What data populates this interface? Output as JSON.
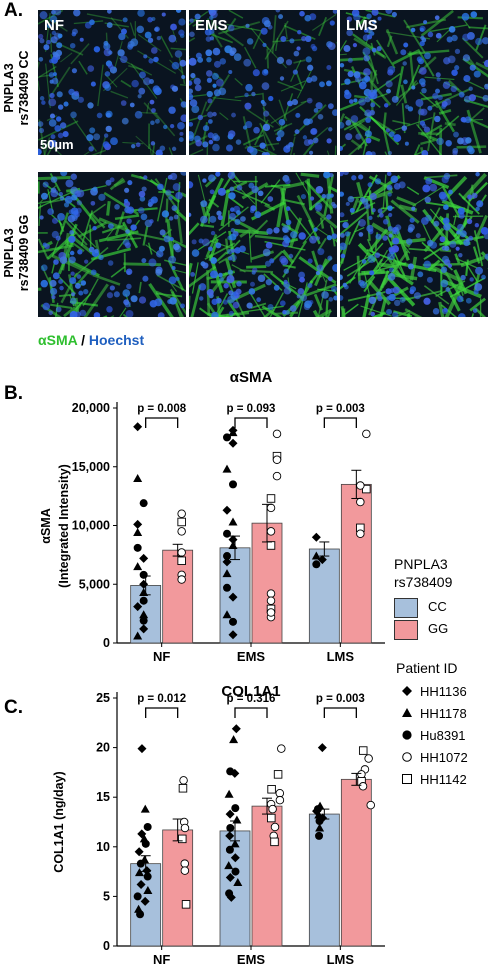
{
  "panelA": {
    "letter": "A.",
    "columns": [
      "NF",
      "EMS",
      "LMS"
    ],
    "rows": [
      "PNPLA3\nrs738409 CC",
      "PNPLA3\nrs738409 GG"
    ],
    "row1": "PNPLA3",
    "row_cc": "rs738409 CC",
    "row_gg": "rs738409 GG",
    "scalebar": "50µm",
    "stain_green": "αSMA",
    "stain_sep": " / ",
    "stain_blue": "Hoechst",
    "color_green": "#2fbf2f",
    "color_blue": "#1f5fbf"
  },
  "legend": {
    "genotype_title_1": "PNPLA3",
    "genotype_title_2": "rs738409",
    "genotypes": [
      {
        "name": "CC",
        "color": "#a7c0dc"
      },
      {
        "name": "GG",
        "color": "#f2999c"
      }
    ],
    "patient_title": "Patient ID",
    "patients": [
      {
        "id": "HH1136",
        "marker": "diamond"
      },
      {
        "id": "HH1178",
        "marker": "triangle"
      },
      {
        "id": "Hu8391",
        "marker": "circle-filled"
      },
      {
        "id": "HH1072",
        "marker": "circle-open"
      },
      {
        "id": "HH1142",
        "marker": "square-open"
      }
    ]
  },
  "chart_data": [
    {
      "letter": "B.",
      "type": "bar",
      "title": "αSMA",
      "ylabel_1": "αSMA",
      "ylabel_2": "(Integrated Intensity)",
      "categories": [
        "NF",
        "EMS",
        "LMS"
      ],
      "ylim": [
        0,
        20000
      ],
      "yticks": [
        "0",
        "5,000",
        "10,000",
        "15,000",
        "20,000"
      ],
      "yticks_values": [
        0,
        5000,
        10000,
        15000,
        20000
      ],
      "series": [
        {
          "name": "CC",
          "values": [
            4900,
            8100,
            8000
          ],
          "errors": [
            800,
            1000,
            600
          ]
        },
        {
          "name": "GG",
          "values": [
            7900,
            10200,
            13500
          ],
          "errors": [
            500,
            1600,
            1200
          ]
        }
      ],
      "pvalues": [
        "p = 0.008",
        "p = 0.093",
        "p = 0.003"
      ]
    },
    {
      "letter": "C.",
      "type": "bar",
      "title": "COL1A1",
      "ylabel_1": "COL1A1 (ng/day)",
      "ylabel_2": "",
      "categories": [
        "NF",
        "EMS",
        "LMS"
      ],
      "ylim": [
        0,
        25
      ],
      "yticks": [
        "0",
        "5",
        "10",
        "15",
        "20",
        "25"
      ],
      "yticks_values": [
        0,
        5,
        10,
        15,
        20,
        25
      ],
      "series": [
        {
          "name": "CC",
          "values": [
            8.3,
            11.6,
            13.3
          ],
          "errors": [
            0.8,
            1.0,
            0.5
          ]
        },
        {
          "name": "GG",
          "values": [
            11.7,
            14.1,
            16.8
          ],
          "errors": [
            1.1,
            0.8,
            0.6
          ]
        }
      ],
      "pvalues": [
        "p = 0.012",
        "p = 0.316",
        "p = 0.003"
      ]
    }
  ],
  "points": {
    "B": [
      [
        [
          0,
          5,
          18400
        ],
        [
          0,
          5,
          14000
        ],
        [
          0,
          10,
          11900
        ],
        [
          0,
          5,
          10100
        ],
        [
          0,
          5,
          9400
        ],
        [
          0,
          5,
          8100
        ],
        [
          0,
          10,
          7200
        ],
        [
          0,
          5,
          6500
        ],
        [
          0,
          10,
          5800
        ],
        [
          0,
          10,
          5000
        ],
        [
          0,
          10,
          4300
        ],
        [
          0,
          10,
          3600
        ],
        [
          0,
          5,
          3100
        ],
        [
          0,
          10,
          2400
        ],
        [
          0,
          10,
          1900
        ],
        [
          0,
          10,
          1200
        ],
        [
          0,
          5,
          600
        ]
      ],
      [
        [
          0,
          15,
          11000
        ],
        [
          0,
          15,
          10300
        ],
        [
          0,
          15,
          9500
        ],
        [
          0,
          15,
          7700
        ],
        [
          0,
          15,
          7000
        ],
        [
          0,
          15,
          5800
        ],
        [
          0,
          15,
          5400
        ]
      ],
      [
        [
          1,
          10,
          18100
        ],
        [
          1,
          10,
          17900
        ],
        [
          1,
          5,
          17500
        ],
        [
          1,
          10,
          17000
        ],
        [
          1,
          5,
          14800
        ],
        [
          1,
          10,
          13500
        ],
        [
          1,
          5,
          11300
        ],
        [
          1,
          10,
          10300
        ],
        [
          1,
          5,
          9300
        ],
        [
          1,
          10,
          8800
        ],
        [
          1,
          10,
          8300
        ],
        [
          1,
          5,
          7400
        ],
        [
          1,
          5,
          6900
        ],
        [
          1,
          5,
          5900
        ],
        [
          1,
          5,
          4700
        ],
        [
          1,
          10,
          3900
        ],
        [
          1,
          5,
          2400
        ],
        [
          1,
          10,
          1800
        ],
        [
          1,
          10,
          700
        ]
      ],
      [
        [
          1,
          20,
          17800
        ],
        [
          1,
          20,
          15900
        ],
        [
          1,
          20,
          15600
        ],
        [
          1,
          20,
          14200
        ],
        [
          1,
          15,
          12300
        ],
        [
          1,
          15,
          11500
        ],
        [
          1,
          15,
          9500
        ],
        [
          1,
          15,
          8300
        ],
        [
          1,
          15,
          4200
        ],
        [
          1,
          15,
          3600
        ],
        [
          1,
          15,
          2900
        ],
        [
          1,
          15,
          2200
        ],
        [
          1,
          15,
          2600
        ]
      ],
      [
        [
          2,
          5,
          9000
        ],
        [
          2,
          5,
          7400
        ],
        [
          2,
          5,
          6700
        ],
        [
          2,
          10,
          7100
        ]
      ],
      [
        [
          2,
          20,
          17800
        ],
        [
          2,
          20,
          13100
        ],
        [
          2,
          15,
          13400
        ],
        [
          2,
          15,
          12000
        ],
        [
          2,
          15,
          9800
        ],
        [
          2,
          15,
          9300
        ]
      ]
    ],
    "C": [
      [
        [
          0,
          5,
          19.9
        ],
        [
          0,
          10,
          13.8
        ],
        [
          0,
          10,
          12.0
        ],
        [
          0,
          5,
          11.3
        ],
        [
          0,
          10,
          10.8
        ],
        [
          0,
          10,
          10.3
        ],
        [
          0,
          5,
          9.5
        ],
        [
          0,
          10,
          8.7
        ],
        [
          0,
          5,
          8.3
        ],
        [
          0,
          10,
          7.6
        ],
        [
          0,
          5,
          7.4
        ],
        [
          0,
          10,
          7.0
        ],
        [
          0,
          5,
          6.2
        ],
        [
          0,
          10,
          5.6
        ],
        [
          0,
          5,
          5.0
        ],
        [
          0,
          10,
          4.5
        ],
        [
          0,
          5,
          3.7
        ],
        [
          0,
          5,
          3.2
        ]
      ],
      [
        [
          0,
          15,
          16.7
        ],
        [
          0,
          15,
          15.9
        ],
        [
          0,
          15,
          12.5
        ],
        [
          0,
          15,
          11.9
        ],
        [
          0,
          15,
          10.8
        ],
        [
          0,
          15,
          8.3
        ],
        [
          0,
          15,
          7.6
        ],
        [
          0,
          15,
          4.2
        ]
      ],
      [
        [
          1,
          10,
          21.9
        ],
        [
          1,
          10,
          20.8
        ],
        [
          1,
          5,
          17.6
        ],
        [
          1,
          10,
          17.4
        ],
        [
          1,
          5,
          15.3
        ],
        [
          1,
          10,
          13.9
        ],
        [
          1,
          5,
          13.3
        ],
        [
          1,
          10,
          12.7
        ],
        [
          1,
          5,
          11.9
        ],
        [
          1,
          5,
          11.1
        ],
        [
          1,
          10,
          10.3
        ],
        [
          1,
          5,
          9.7
        ],
        [
          1,
          10,
          8.9
        ],
        [
          1,
          5,
          8.1
        ],
        [
          1,
          10,
          7.5
        ],
        [
          1,
          5,
          6.9
        ],
        [
          1,
          10,
          6.4
        ],
        [
          1,
          5,
          5.3
        ],
        [
          1,
          5,
          4.9
        ]
      ],
      [
        [
          1,
          20,
          19.9
        ],
        [
          1,
          20,
          17.3
        ],
        [
          1,
          20,
          15.4
        ],
        [
          1,
          20,
          14.7
        ],
        [
          1,
          15,
          15.8
        ],
        [
          1,
          15,
          14.3
        ],
        [
          1,
          15,
          13.8
        ],
        [
          1,
          15,
          12.9
        ],
        [
          1,
          15,
          12.0
        ],
        [
          1,
          15,
          11.1
        ],
        [
          1,
          15,
          10.5
        ]
      ],
      [
        [
          2,
          10,
          20.0
        ],
        [
          2,
          5,
          14.1
        ],
        [
          2,
          5,
          13.8
        ],
        [
          2,
          5,
          13.6
        ],
        [
          2,
          5,
          13.2
        ],
        [
          2,
          5,
          12.6
        ],
        [
          2,
          10,
          12.9
        ],
        [
          2,
          5,
          11.9
        ],
        [
          2,
          5,
          11.1
        ]
      ],
      [
        [
          2,
          20,
          18.9
        ],
        [
          2,
          15,
          19.7
        ],
        [
          2,
          15,
          17.8
        ],
        [
          2,
          15,
          17.3
        ],
        [
          2,
          15,
          16.6
        ],
        [
          2,
          15,
          16.1
        ],
        [
          2,
          20,
          14.2
        ]
      ]
    ]
  }
}
